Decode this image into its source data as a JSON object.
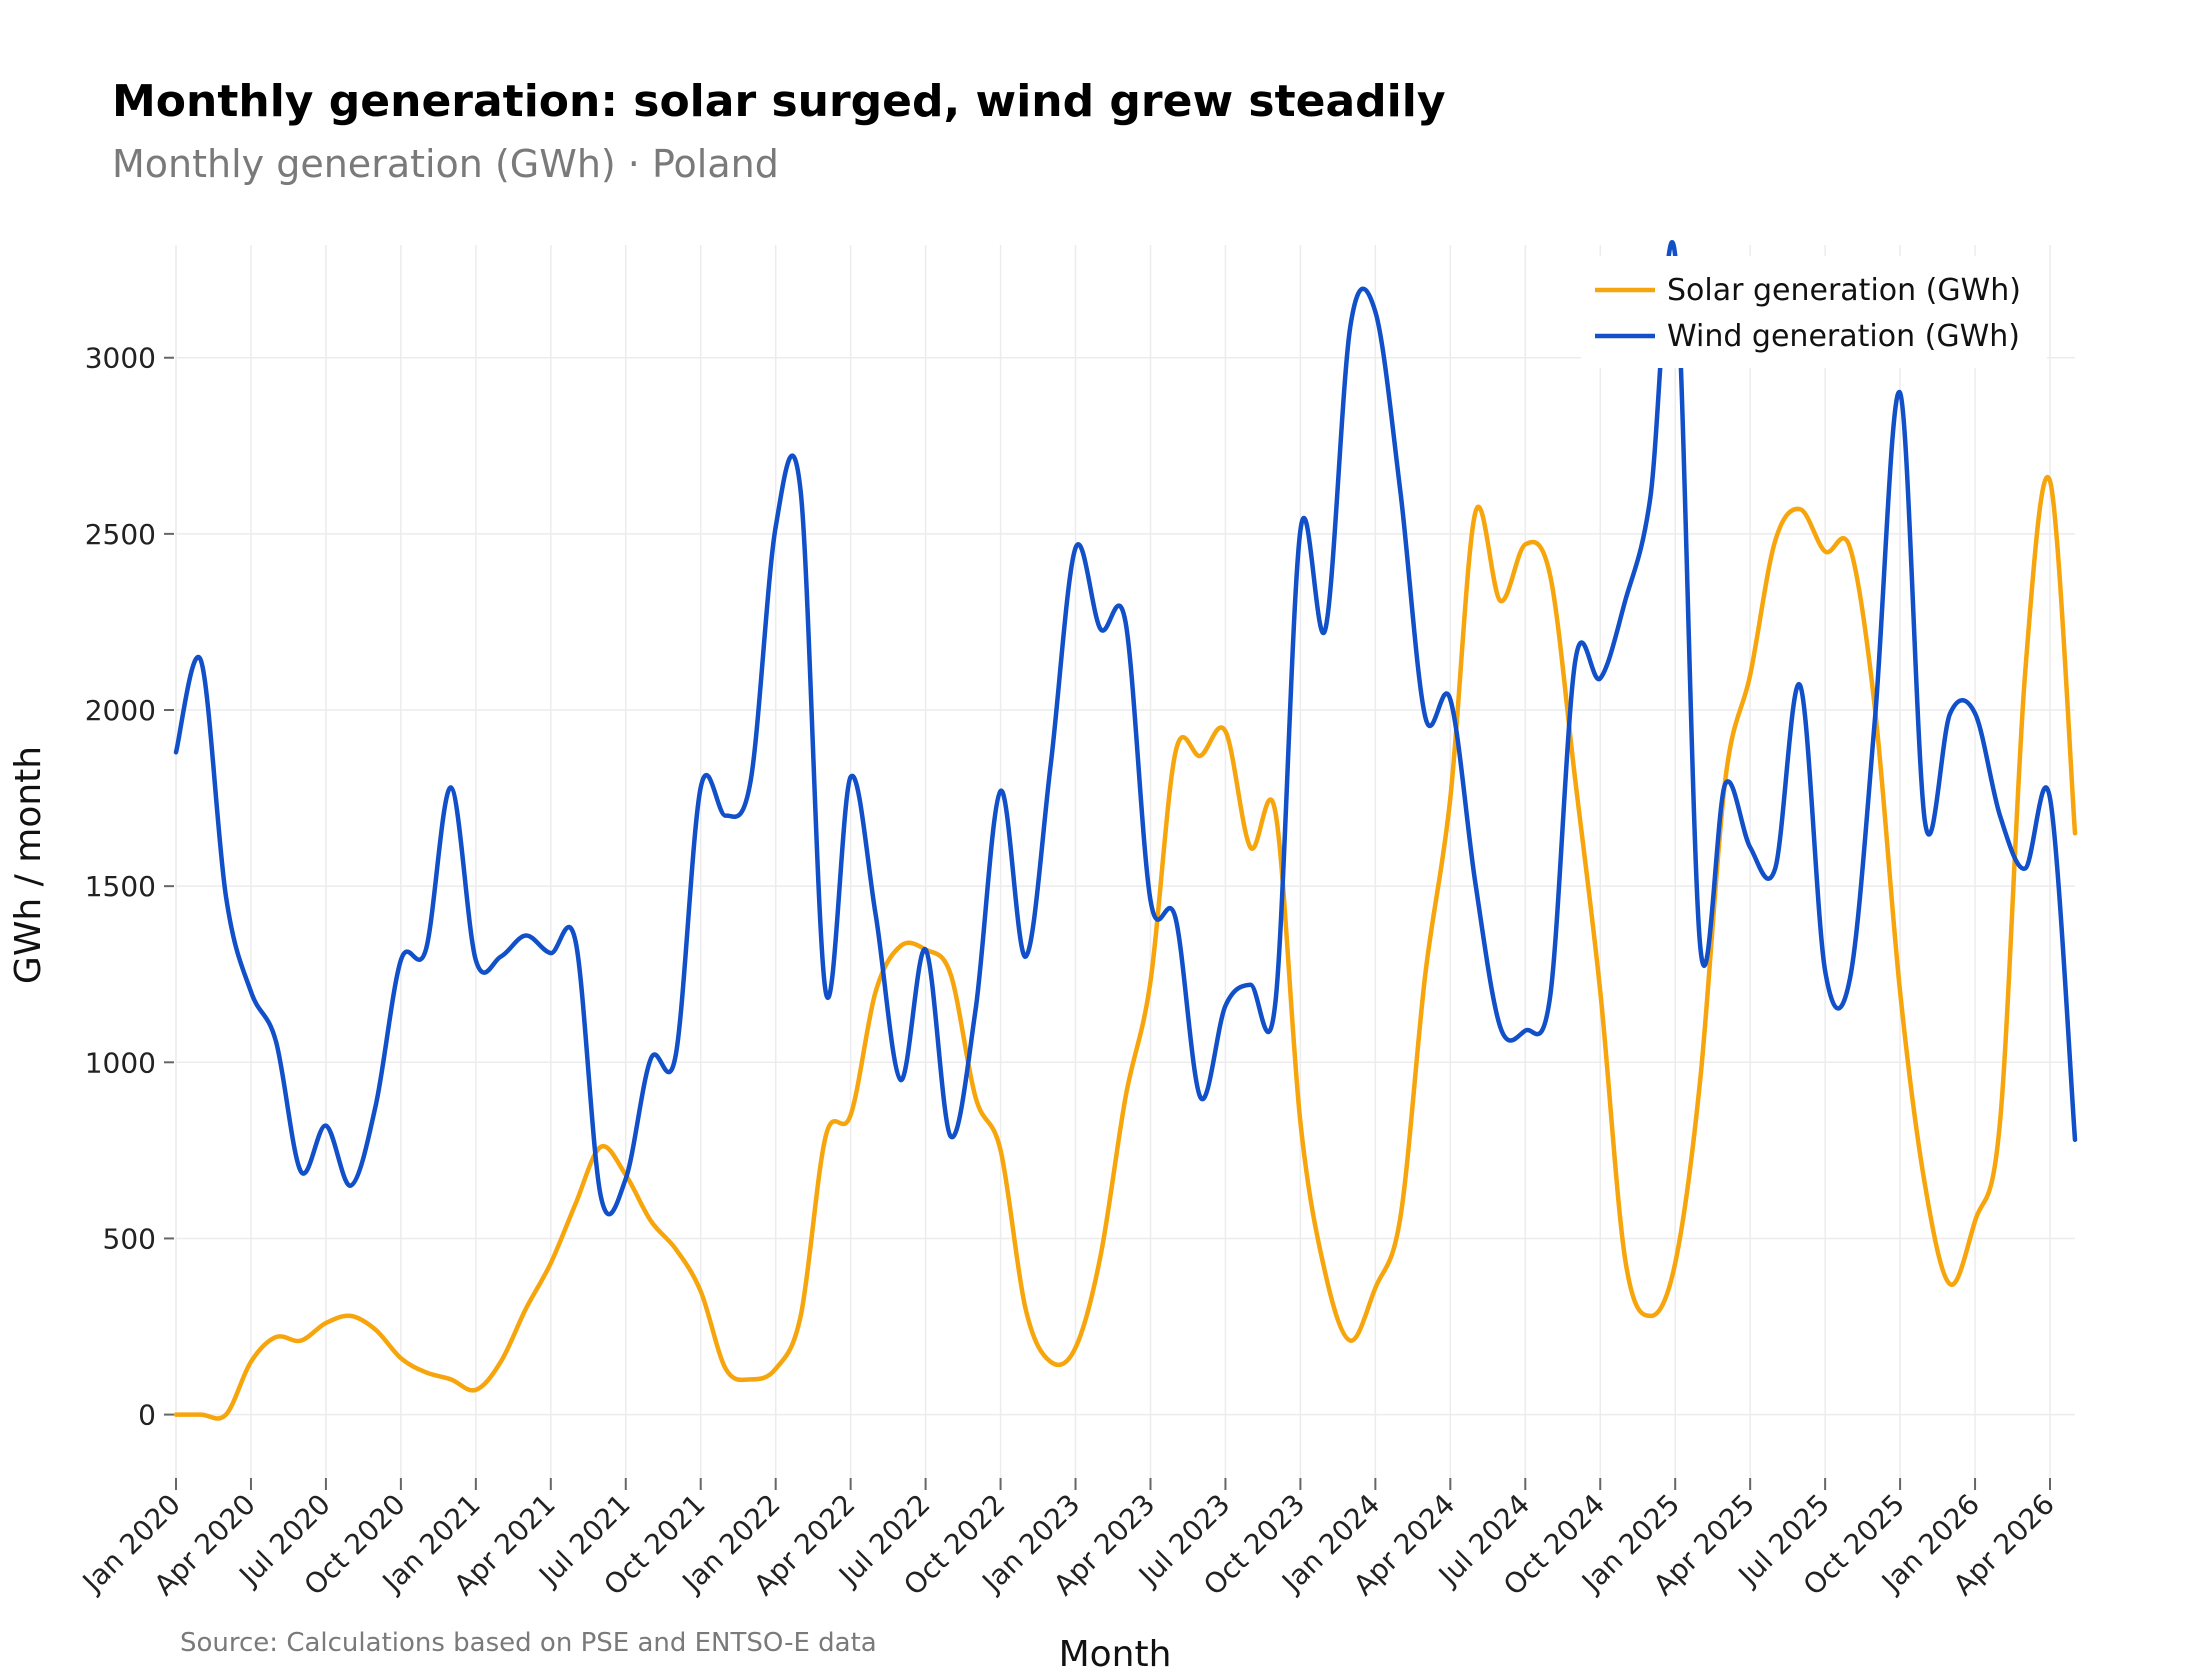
{
  "header": {
    "title": "Monthly generation: solar surged, wind grew steadily",
    "subtitle": "Monthly generation (GWh) · Poland"
  },
  "footer": {
    "source": "Source: Calculations based on PSE and ENTSO-E data"
  },
  "colors": {
    "solar": "#F7A50C",
    "wind": "#1150C8",
    "grid": "#ececec"
  },
  "chart_data": {
    "type": "line",
    "xlabel": "Month",
    "ylabel": "GWh / month",
    "ylim": [
      -180,
      3320
    ],
    "yticks": [
      0,
      500,
      1000,
      1500,
      2000,
      2500,
      3000
    ],
    "x_range": [
      "2020-01",
      "2026-05"
    ],
    "x_tick_labels": [
      "Jan 2020",
      "Apr 2020",
      "Jul 2020",
      "Oct 2020",
      "Jan 2021",
      "Apr 2021",
      "Jul 2021",
      "Oct 2021",
      "Jan 2022",
      "Apr 2022",
      "Jul 2022",
      "Oct 2022",
      "Jan 2023",
      "Apr 2023",
      "Jul 2023",
      "Oct 2023",
      "Jan 2024",
      "Apr 2024",
      "Jul 2024",
      "Oct 2024",
      "Jan 2025",
      "Apr 2025",
      "Jul 2025",
      "Oct 2025",
      "Jan 2026",
      "Apr 2026"
    ],
    "grid": true,
    "legend": "top-right",
    "x": [
      "2020-01",
      "2020-02",
      "2020-03",
      "2020-04",
      "2020-05",
      "2020-06",
      "2020-07",
      "2020-08",
      "2020-09",
      "2020-10",
      "2020-11",
      "2020-12",
      "2021-01",
      "2021-02",
      "2021-03",
      "2021-04",
      "2021-05",
      "2021-06",
      "2021-07",
      "2021-08",
      "2021-09",
      "2021-10",
      "2021-11",
      "2021-12",
      "2022-01",
      "2022-02",
      "2022-03",
      "2022-04",
      "2022-05",
      "2022-06",
      "2022-07",
      "2022-08",
      "2022-09",
      "2022-10",
      "2022-11",
      "2022-12",
      "2023-01",
      "2023-02",
      "2023-03",
      "2023-04",
      "2023-05",
      "2023-06",
      "2023-07",
      "2023-08",
      "2023-09",
      "2023-10",
      "2023-11",
      "2023-12",
      "2024-01",
      "2024-02",
      "2024-03",
      "2024-04",
      "2024-05",
      "2024-06",
      "2024-07",
      "2024-08",
      "2024-09",
      "2024-10",
      "2024-11",
      "2024-12",
      "2025-01",
      "2025-02",
      "2025-03",
      "2025-04",
      "2025-05",
      "2025-06",
      "2025-07",
      "2025-08",
      "2025-09",
      "2025-10",
      "2025-11",
      "2025-12",
      "2026-01",
      "2026-02",
      "2026-03",
      "2026-04",
      "2026-05"
    ],
    "series": [
      {
        "name": "Solar generation (GWh)",
        "values": [
          0,
          0,
          0,
          150,
          220,
          210,
          260,
          280,
          240,
          160,
          120,
          100,
          70,
          150,
          300,
          430,
          600,
          760,
          680,
          550,
          470,
          350,
          130,
          100,
          130,
          280,
          790,
          850,
          1200,
          1330,
          1320,
          1250,
          900,
          750,
          300,
          150,
          190,
          450,
          900,
          1230,
          1880,
          1870,
          1940,
          1610,
          1710,
          830,
          400,
          210,
          360,
          560,
          1250,
          1750,
          2560,
          2310,
          2470,
          2380,
          1800,
          1200,
          440,
          280,
          430,
          950,
          1800,
          2100,
          2480,
          2570,
          2450,
          2460,
          2000,
          1200,
          650,
          370,
          550,
          830,
          2100,
          2650,
          1650
        ]
      },
      {
        "name": "Wind generation (GWh)",
        "values": [
          1880,
          2140,
          1470,
          1200,
          1060,
          690,
          820,
          650,
          880,
          1290,
          1320,
          1780,
          1290,
          1300,
          1360,
          1310,
          1340,
          620,
          670,
          1010,
          1020,
          1780,
          1700,
          1800,
          2520,
          2620,
          1200,
          1810,
          1420,
          950,
          1320,
          790,
          1150,
          1770,
          1300,
          1840,
          2460,
          2230,
          2250,
          1460,
          1410,
          900,
          1160,
          1220,
          1170,
          2510,
          2230,
          3090,
          3130,
          2620,
          1980,
          2030,
          1510,
          1100,
          1090,
          1190,
          2140,
          2090,
          2310,
          2600,
          3290,
          1330,
          1790,
          1610,
          1550,
          2070,
          1260,
          1240,
          1980,
          2900,
          1680,
          1990,
          1990,
          1700,
          1550,
          1750,
          780
        ]
      }
    ]
  }
}
